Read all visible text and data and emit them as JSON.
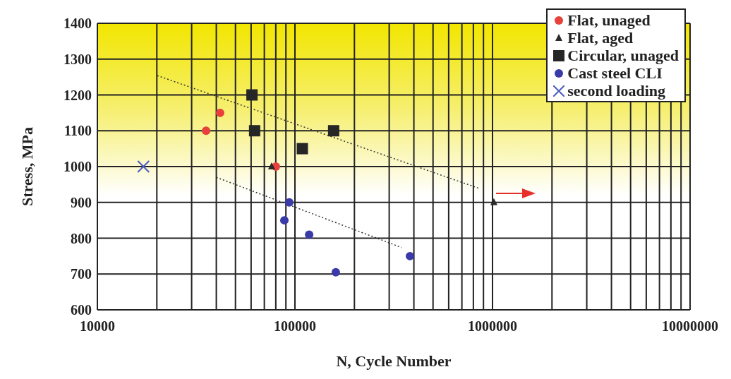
{
  "chart_data": {
    "type": "scatter",
    "xlabel": "N, Cycle Number",
    "ylabel": "Stress, MPa",
    "log": "x",
    "xlim": [
      10000,
      10000000
    ],
    "xticks": [
      10000,
      {
        "value": 20000,
        "label": null
      },
      {
        "value": 30000,
        "label": null
      },
      {
        "value": 40000,
        "label": null
      },
      {
        "value": 50000,
        "label": null
      },
      {
        "value": 60000,
        "label": null
      },
      {
        "value": 70000,
        "label": null
      },
      {
        "value": 80000,
        "label": null
      },
      {
        "value": 90000,
        "label": null
      },
      100000,
      {
        "value": 200000,
        "label": null
      },
      {
        "value": 300000,
        "label": null
      },
      {
        "value": 400000,
        "label": null
      },
      {
        "value": 500000,
        "label": null
      },
      {
        "value": 600000,
        "label": null
      },
      {
        "value": 700000,
        "label": null
      },
      {
        "value": 800000,
        "label": null
      },
      {
        "value": 900000,
        "label": null
      },
      1000000,
      {
        "value": 2000000,
        "label": null
      },
      {
        "value": 3000000,
        "label": null
      },
      {
        "value": 4000000,
        "label": null
      },
      {
        "value": 5000000,
        "label": null
      },
      {
        "value": 6000000,
        "label": null
      },
      {
        "value": 7000000,
        "label": null
      },
      {
        "value": 8000000,
        "label": null
      },
      {
        "value": 9000000,
        "label": null
      },
      10000000
    ],
    "ylim": [
      600,
      1400
    ],
    "yticks": [
      600,
      700,
      800,
      900,
      1000,
      1100,
      1200,
      1300,
      1400
    ],
    "grid": true,
    "legend": "top right",
    "series": [
      {
        "name": "Flat, unaged",
        "color": "#e8403a",
        "marker": "circle",
        "x": [
          35500,
          41800,
          80100
        ],
        "values": [
          1100,
          1150,
          1000
        ]
      },
      {
        "name": "Flat, aged",
        "color": "#2a2a2a",
        "marker": "triangle",
        "x": [
          76200,
          1016000
        ],
        "values": [
          1000,
          900
        ]
      },
      {
        "name": "Circular, unaged",
        "color": "#262626",
        "marker": "square",
        "x": [
          60600,
          62500,
          109000,
          157000
        ],
        "values": [
          1200,
          1100,
          1050,
          1100
        ]
      },
      {
        "name": "Cast steel CLI",
        "color": "#3a3aa8",
        "marker": "circle",
        "x": [
          93600,
          88400,
          118000,
          161000,
          382000
        ],
        "values": [
          900,
          850,
          810,
          705,
          750
        ]
      },
      {
        "name": "second loading",
        "color": "#4a5ac0",
        "marker": "cross",
        "x": [
          17100
        ],
        "values": [
          1000
        ]
      },
      {
        "type": "line",
        "color": "#333333",
        "line_style": "dotted",
        "x": [
          20100,
          855000
        ],
        "values": [
          1254,
          939
        ]
      },
      {
        "type": "line",
        "color": "#333333",
        "line_style": "dotted",
        "x": [
          40000,
          346000
        ],
        "values": [
          970,
          774
        ]
      }
    ]
  }
}
